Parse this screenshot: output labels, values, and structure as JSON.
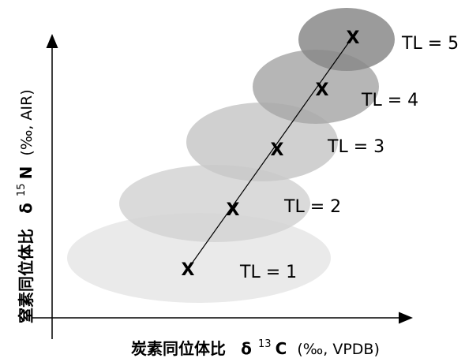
{
  "diagram": {
    "x_axis": {
      "label_jp": "炭素同位体比",
      "delta": "δ",
      "superscript": "13",
      "element": "C",
      "unit": "(‰, VPDB)"
    },
    "y_axis": {
      "label_jp": "窒素同位体比",
      "delta": "δ",
      "superscript": "15",
      "element": "N",
      "unit": "(‰, AIR)"
    },
    "levels": [
      {
        "label": "TL = 1",
        "marker": "X",
        "fill": "#e6e6e6"
      },
      {
        "label": "TL = 2",
        "marker": "X",
        "fill": "#d4d4d4"
      },
      {
        "label": "TL = 3",
        "marker": "X",
        "fill": "#c8c8c8"
      },
      {
        "label": "TL = 4",
        "marker": "X",
        "fill": "#a9a9a9"
      },
      {
        "label": "TL = 5",
        "marker": "X",
        "fill": "#8a8a8a"
      }
    ]
  }
}
